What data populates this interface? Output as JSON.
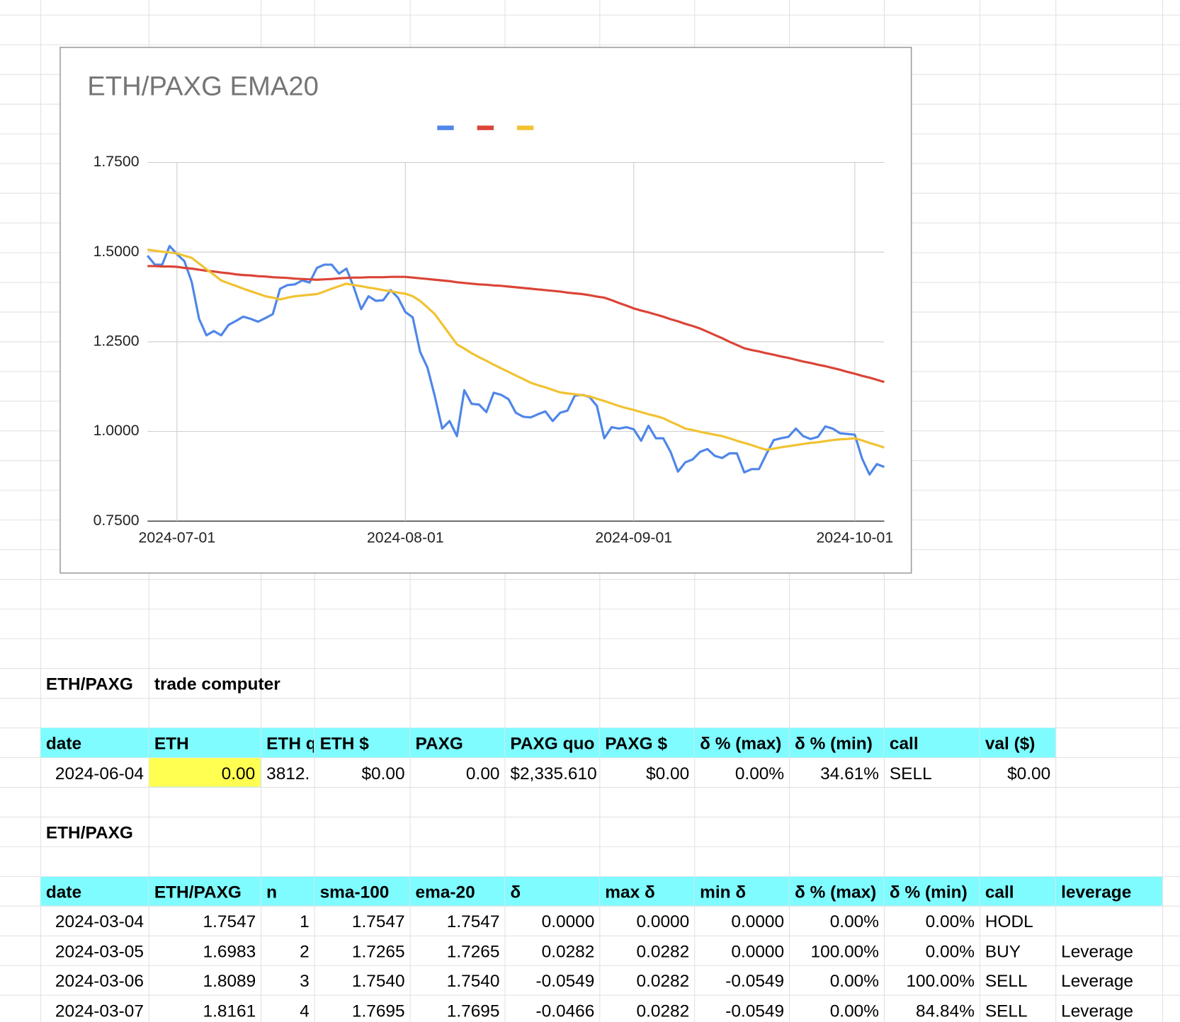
{
  "chart_data": {
    "type": "line",
    "title": "ETH/PAXG EMA20",
    "x": [
      "2024-06-27",
      "2024-06-28",
      "2024-06-29",
      "2024-06-30",
      "2024-07-01",
      "2024-07-02",
      "2024-07-03",
      "2024-07-04",
      "2024-07-05",
      "2024-07-06",
      "2024-07-07",
      "2024-07-08",
      "2024-07-09",
      "2024-07-10",
      "2024-07-11",
      "2024-07-12",
      "2024-07-13",
      "2024-07-14",
      "2024-07-15",
      "2024-07-16",
      "2024-07-17",
      "2024-07-18",
      "2024-07-19",
      "2024-07-20",
      "2024-07-21",
      "2024-07-22",
      "2024-07-23",
      "2024-07-24",
      "2024-07-25",
      "2024-07-26",
      "2024-07-27",
      "2024-07-28",
      "2024-07-29",
      "2024-07-30",
      "2024-07-31",
      "2024-08-01",
      "2024-08-02",
      "2024-08-03",
      "2024-08-04",
      "2024-08-05",
      "2024-08-06",
      "2024-08-07",
      "2024-08-08",
      "2024-08-09",
      "2024-08-10",
      "2024-08-11",
      "2024-08-12",
      "2024-08-13",
      "2024-08-14",
      "2024-08-15",
      "2024-08-16",
      "2024-08-17",
      "2024-08-18",
      "2024-08-19",
      "2024-08-20",
      "2024-08-21",
      "2024-08-22",
      "2024-08-23",
      "2024-08-24",
      "2024-08-25",
      "2024-08-26",
      "2024-08-27",
      "2024-08-28",
      "2024-08-29",
      "2024-08-30",
      "2024-08-31",
      "2024-09-01",
      "2024-09-02",
      "2024-09-03",
      "2024-09-04",
      "2024-09-05",
      "2024-09-06",
      "2024-09-07",
      "2024-09-08",
      "2024-09-09",
      "2024-09-10",
      "2024-09-11",
      "2024-09-12",
      "2024-09-13",
      "2024-09-14",
      "2024-09-15",
      "2024-09-16",
      "2024-09-17",
      "2024-09-18",
      "2024-09-19",
      "2024-09-20",
      "2024-09-21",
      "2024-09-22",
      "2024-09-23",
      "2024-09-24",
      "2024-09-25",
      "2024-09-26",
      "2024-09-27",
      "2024-09-28",
      "2024-09-29",
      "2024-09-30",
      "2024-10-01",
      "2024-10-02",
      "2024-10-03",
      "2024-10-04",
      "2024-10-05"
    ],
    "series": [
      {
        "color": "#4f86e8",
        "values": [
          1.49,
          1.465,
          1.465,
          1.517,
          1.494,
          1.475,
          1.417,
          1.314,
          1.268,
          1.28,
          1.268,
          1.297,
          1.308,
          1.32,
          1.314,
          1.306,
          1.316,
          1.327,
          1.398,
          1.408,
          1.41,
          1.421,
          1.415,
          1.456,
          1.465,
          1.465,
          1.44,
          1.454,
          1.402,
          1.341,
          1.377,
          1.364,
          1.366,
          1.394,
          1.373,
          1.333,
          1.318,
          1.222,
          1.178,
          1.098,
          1.008,
          1.029,
          0.987,
          1.115,
          1.077,
          1.075,
          1.054,
          1.108,
          1.102,
          1.09,
          1.052,
          1.041,
          1.039,
          1.048,
          1.056,
          1.029,
          1.052,
          1.058,
          1.1,
          1.102,
          1.096,
          1.071,
          0.981,
          1.012,
          1.008,
          1.012,
          1.006,
          0.974,
          1.016,
          0.981,
          0.981,
          0.943,
          0.888,
          0.914,
          0.922,
          0.943,
          0.951,
          0.932,
          0.926,
          0.939,
          0.939,
          0.886,
          0.895,
          0.895,
          0.937,
          0.976,
          0.981,
          0.985,
          1.008,
          0.987,
          0.979,
          0.985,
          1.014,
          1.008,
          0.995,
          0.993,
          0.991,
          0.924,
          0.88,
          0.909,
          0.901
        ]
      },
      {
        "color": "#db4437",
        "values": [
          1.461,
          1.461,
          1.46,
          1.46,
          1.459,
          1.456,
          1.454,
          1.451,
          1.448,
          1.446,
          1.443,
          1.441,
          1.438,
          1.436,
          1.435,
          1.433,
          1.432,
          1.43,
          1.429,
          1.428,
          1.426,
          1.425,
          1.424,
          1.423,
          1.424,
          1.425,
          1.427,
          1.428,
          1.429,
          1.429,
          1.43,
          1.43,
          1.43,
          1.431,
          1.431,
          1.431,
          1.429,
          1.427,
          1.425,
          1.423,
          1.421,
          1.419,
          1.416,
          1.414,
          1.412,
          1.41,
          1.409,
          1.407,
          1.406,
          1.404,
          1.402,
          1.4,
          1.398,
          1.396,
          1.394,
          1.392,
          1.39,
          1.387,
          1.385,
          1.383,
          1.38,
          1.376,
          1.373,
          1.366,
          1.358,
          1.351,
          1.343,
          1.337,
          1.332,
          1.326,
          1.32,
          1.313,
          1.307,
          1.3,
          1.294,
          1.287,
          1.278,
          1.269,
          1.26,
          1.25,
          1.241,
          1.232,
          1.227,
          1.223,
          1.218,
          1.214,
          1.209,
          1.205,
          1.2,
          1.195,
          1.191,
          1.186,
          1.182,
          1.177,
          1.172,
          1.166,
          1.161,
          1.155,
          1.15,
          1.144,
          1.138
        ]
      },
      {
        "color": "#f1c232",
        "values": [
          1.507,
          1.504,
          1.501,
          1.499,
          1.496,
          1.49,
          1.484,
          1.468,
          1.452,
          1.437,
          1.421,
          1.413,
          1.406,
          1.398,
          1.391,
          1.384,
          1.377,
          1.373,
          1.368,
          1.373,
          1.377,
          1.379,
          1.381,
          1.383,
          1.39,
          1.398,
          1.405,
          1.412,
          1.408,
          1.405,
          1.401,
          1.398,
          1.394,
          1.391,
          1.387,
          1.384,
          1.377,
          1.364,
          1.346,
          1.327,
          1.299,
          1.271,
          1.243,
          1.231,
          1.218,
          1.207,
          1.197,
          1.186,
          1.176,
          1.166,
          1.156,
          1.146,
          1.136,
          1.129,
          1.123,
          1.116,
          1.109,
          1.106,
          1.104,
          1.101,
          1.098,
          1.091,
          1.085,
          1.078,
          1.071,
          1.065,
          1.06,
          1.054,
          1.048,
          1.043,
          1.037,
          1.027,
          1.018,
          1.008,
          1.004,
          0.999,
          0.995,
          0.991,
          0.987,
          0.981,
          0.974,
          0.968,
          0.962,
          0.955,
          0.949,
          0.952,
          0.956,
          0.959,
          0.962,
          0.965,
          0.968,
          0.97,
          0.973,
          0.976,
          0.978,
          0.979,
          0.981,
          0.975,
          0.968,
          0.962,
          0.955
        ]
      }
    ],
    "xlim": [
      "2024-06-27",
      "2024-10-05"
    ],
    "xticks": [
      "2024-07-01",
      "2024-08-01",
      "2024-09-01",
      "2024-10-01"
    ],
    "ylim": [
      0.75,
      1.75
    ],
    "yticks": [
      {
        "value": 0.75,
        "label": "0.7500"
      },
      {
        "value": 1,
        "label": "1.0000"
      },
      {
        "value": 1.25,
        "label": "1.2500"
      },
      {
        "value": 1.5,
        "label": "1.5000"
      },
      {
        "value": 1.75,
        "label": "1.7500"
      }
    ],
    "grid": true,
    "legend": "top"
  },
  "sheet": {
    "trade_title": [
      "ETH/PAXG",
      "trade computer"
    ],
    "trade_table": {
      "header": [
        "date",
        "ETH",
        "ETH q",
        "ETH $",
        "PAXG",
        "PAXG quo",
        "PAXG $",
        "δ % (max)",
        "δ % (min)",
        "call",
        "val ($)"
      ],
      "rows": [
        [
          "2024-06-04",
          "0.00",
          "3812.",
          "$0.00",
          "0.00",
          "$2,335.610",
          "$0.00",
          "0.00%",
          "34.61%",
          "SELL",
          "$0.00"
        ]
      ]
    },
    "history_title": "ETH/PAXG",
    "history_table": {
      "header": [
        "date",
        "ETH/PAXG",
        "n",
        "sma-100",
        "ema-20",
        "δ",
        "max δ",
        "min δ",
        "δ % (max)",
        "δ % (min)",
        "call",
        "leverage"
      ],
      "rows": [
        [
          "2024-03-04",
          "1.7547",
          "1",
          "1.7547",
          "1.7547",
          "0.0000",
          "0.0000",
          "0.0000",
          "0.00%",
          "0.00%",
          "HODL"
        ],
        [
          "2024-03-05",
          "1.6983",
          "2",
          "1.7265",
          "1.7265",
          "0.0282",
          "0.0282",
          "0.0000",
          "100.00%",
          "0.00%",
          "BUY",
          "Leverage"
        ],
        [
          "2024-03-06",
          "1.8089",
          "3",
          "1.7540",
          "1.7540",
          "-0.0549",
          "0.0282",
          "-0.0549",
          "0.00%",
          "100.00%",
          "SELL",
          "Leverage"
        ],
        [
          "2024-03-07",
          "1.8161",
          "4",
          "1.7695",
          "1.7695",
          "-0.0466",
          "0.0282",
          "-0.0549",
          "0.00%",
          "84.84%",
          "SELL",
          "Leverage"
        ]
      ]
    }
  }
}
